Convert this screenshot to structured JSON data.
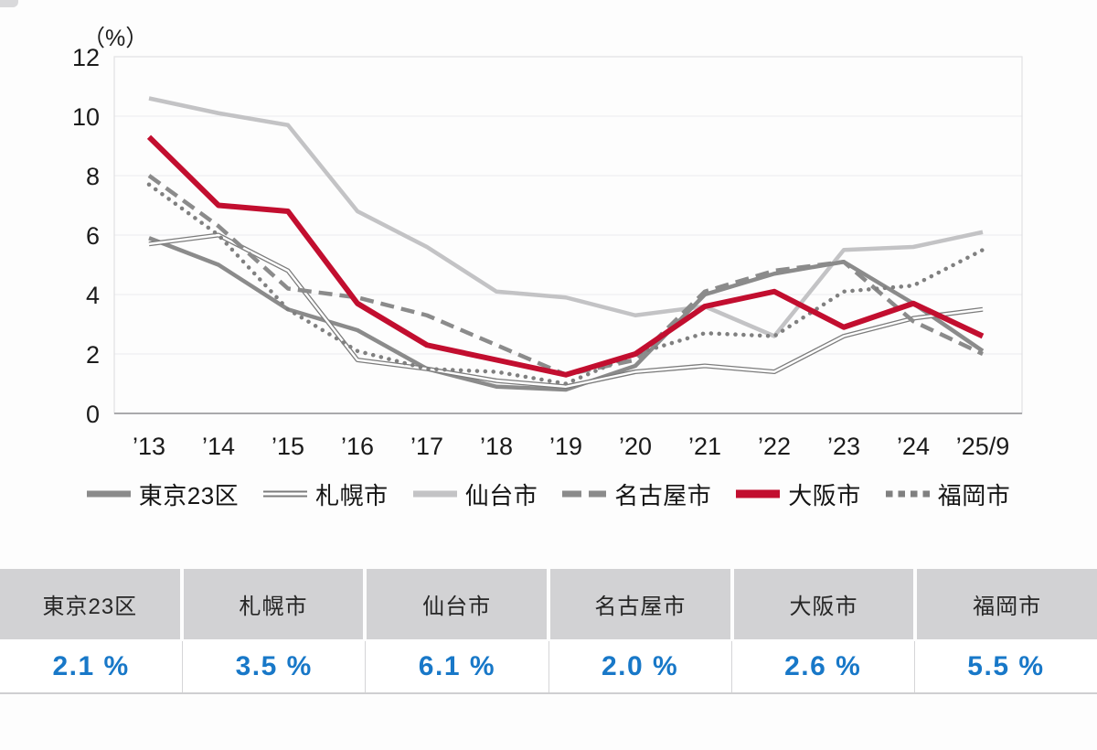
{
  "chart_data": {
    "type": "line",
    "title": "",
    "unit": "（%）",
    "categories": [
      "’13",
      "’14",
      "’15",
      "’16",
      "’17",
      "’18",
      "’19",
      "’20",
      "’21",
      "’22",
      "’23",
      "’24",
      "’25/9"
    ],
    "ylim": [
      0,
      12
    ],
    "yticks": [
      0,
      2,
      4,
      6,
      8,
      10,
      12
    ],
    "grid": "horizontal",
    "legend_position": "bottom",
    "series": [
      {
        "name": "東京23区",
        "slug": "tokyo-23-wards",
        "color": "#8b8b8b",
        "style": "solid",
        "width": 4.5,
        "values": [
          5.9,
          5.0,
          3.5,
          2.8,
          1.5,
          0.9,
          0.8,
          1.6,
          4.0,
          4.7,
          5.1,
          3.7,
          2.1
        ]
      },
      {
        "name": "札幌市",
        "slug": "sapporo",
        "color": "#7c7c7c",
        "style": "double",
        "width": 5,
        "values": [
          5.7,
          6.0,
          4.8,
          1.8,
          1.5,
          1.1,
          0.9,
          1.4,
          1.6,
          1.4,
          2.6,
          3.2,
          3.5
        ]
      },
      {
        "name": "仙台市",
        "slug": "sendai",
        "color": "#c3c3c5",
        "style": "solid",
        "width": 4.5,
        "values": [
          10.6,
          10.1,
          9.7,
          6.8,
          5.6,
          4.1,
          3.9,
          3.3,
          3.6,
          2.6,
          5.5,
          5.6,
          6.1
        ]
      },
      {
        "name": "名古屋市",
        "slug": "nagoya",
        "color": "#8b8b8b",
        "style": "dashed",
        "width": 4.5,
        "values": [
          8.0,
          6.3,
          4.2,
          3.9,
          3.3,
          2.3,
          1.3,
          1.8,
          4.1,
          4.8,
          5.1,
          3.1,
          2.0
        ]
      },
      {
        "name": "大阪市",
        "slug": "osaka",
        "color": "#c20e2f",
        "style": "solid",
        "width": 6,
        "values": [
          9.3,
          7.0,
          6.8,
          3.7,
          2.3,
          1.8,
          1.3,
          2.0,
          3.6,
          4.1,
          2.9,
          3.7,
          2.6
        ]
      },
      {
        "name": "福岡市",
        "slug": "fukuoka",
        "color": "#808080",
        "style": "dotted",
        "width": 4.5,
        "values": [
          7.7,
          6.0,
          3.5,
          2.1,
          1.5,
          1.4,
          1.0,
          2.0,
          2.7,
          2.6,
          4.1,
          4.3,
          5.5
        ]
      }
    ],
    "draw_order": [
      "sendai",
      "tokyo-23-wards",
      "sapporo",
      "nagoya",
      "fukuoka",
      "osaka"
    ]
  },
  "summary_table": {
    "value_color": "#1878c8",
    "header_bg": "#d2d2d4",
    "columns": [
      {
        "label": "東京23区",
        "value": "2.1 %"
      },
      {
        "label": "札幌市",
        "value": "3.5 %"
      },
      {
        "label": "仙台市",
        "value": "6.1 %"
      },
      {
        "label": "名古屋市",
        "value": "2.0 %"
      },
      {
        "label": "大阪市",
        "value": "2.6 %"
      },
      {
        "label": "福岡市",
        "value": "5.5 %"
      }
    ]
  }
}
